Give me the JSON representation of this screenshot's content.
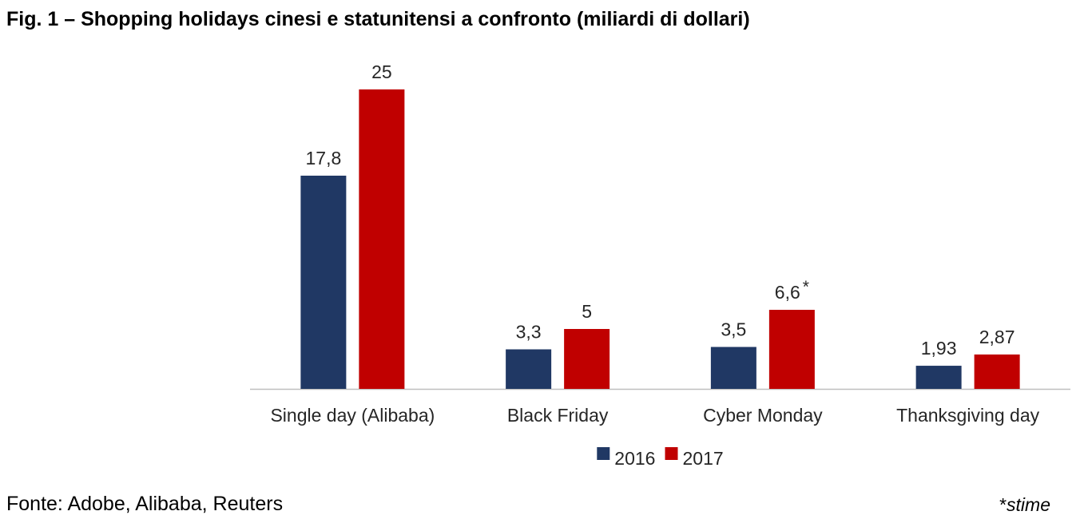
{
  "chart_data": {
    "type": "bar",
    "title": "Fig. 1 – Shopping holidays cinesi e statunitensi a confronto (miliardi di dollari)",
    "categories": [
      "Single day (Alibaba)",
      "Black Friday",
      "Cyber Monday",
      "Thanksgiving day"
    ],
    "series": [
      {
        "name": "2016",
        "color": "#203864",
        "values": [
          17.8,
          3.3,
          3.5,
          1.93
        ],
        "labels": [
          "17,8",
          "3,3",
          "3,5",
          "1,93"
        ],
        "label_suffix": [
          "",
          "",
          "",
          ""
        ]
      },
      {
        "name": "2017",
        "color": "#C00000",
        "values": [
          25,
          5,
          6.6,
          2.87
        ],
        "labels": [
          "25",
          "5",
          "6,6",
          "2,87"
        ],
        "label_suffix": [
          "",
          "",
          "*",
          ""
        ]
      }
    ],
    "ylim": [
      0,
      25
    ],
    "grid": false,
    "legend": "bottom-center"
  },
  "footer": {
    "source": "Fonte: Adobe, Alibaba, Reuters",
    "note_mark": "*",
    "note_text": "stime"
  }
}
